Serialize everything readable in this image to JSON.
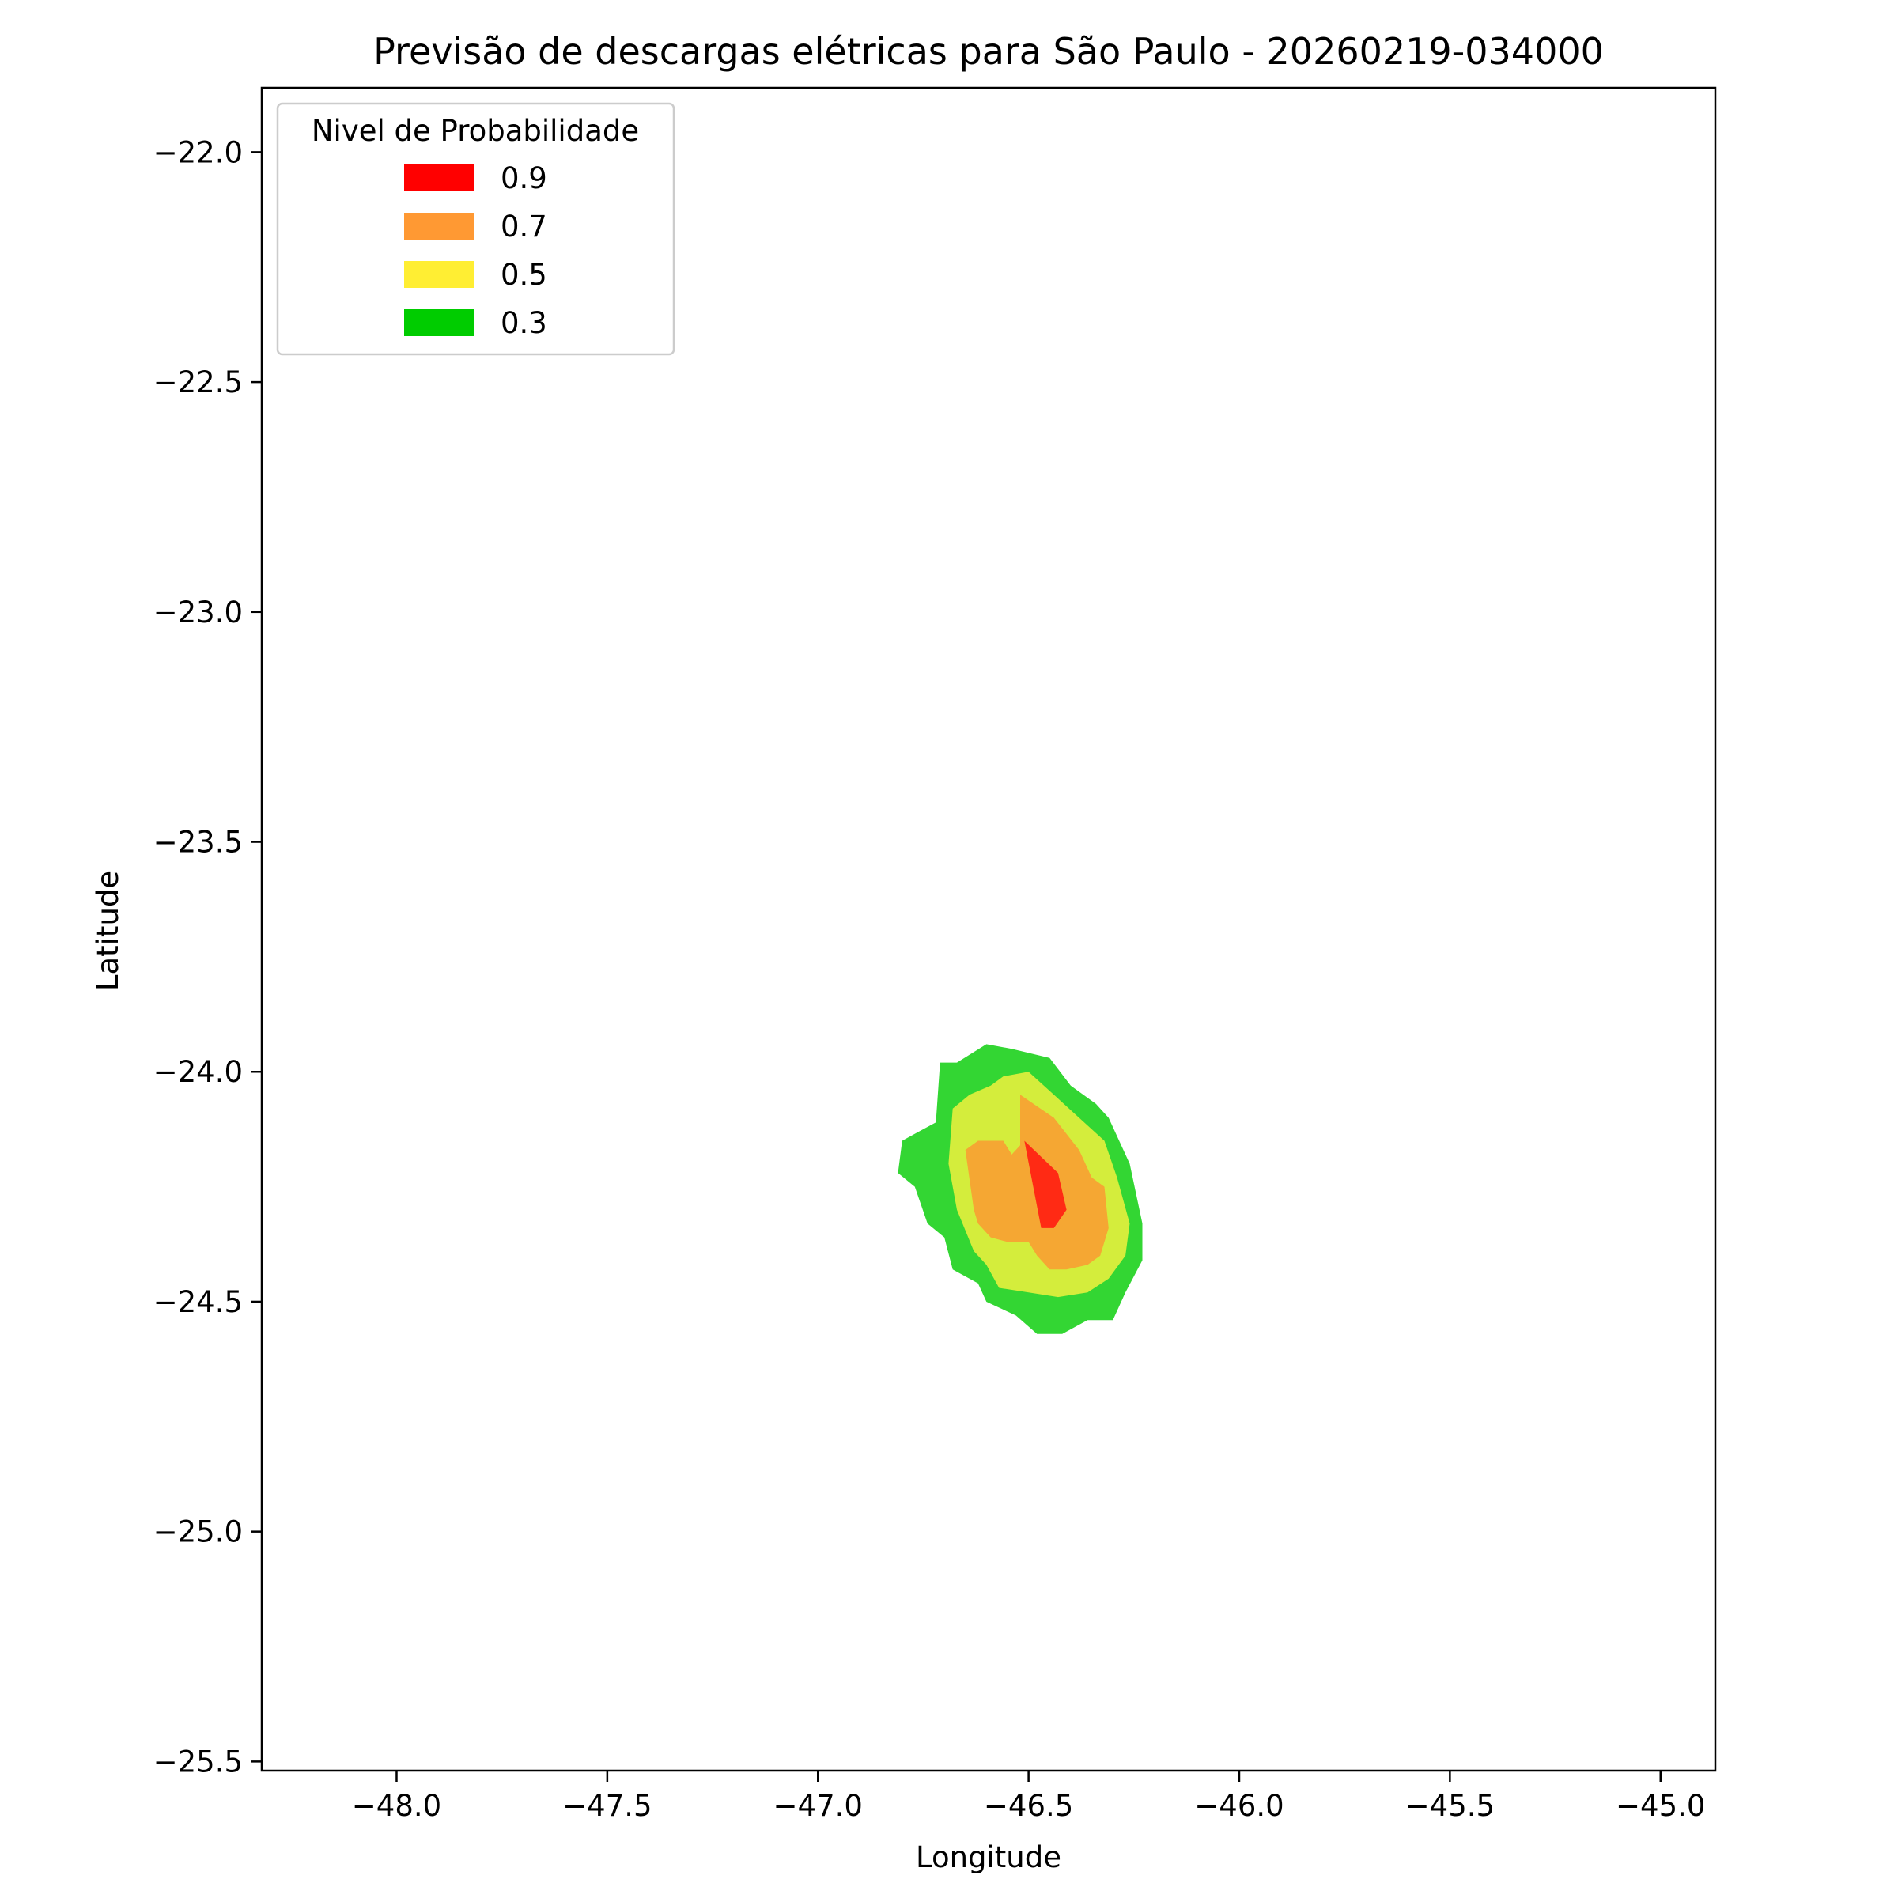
{
  "chart_data": {
    "type": "contour",
    "title": "Previsão de descargas elétricas para São Paulo - 20260219-034000",
    "xlabel": "Longitude",
    "ylabel": "Latitude",
    "xlim": [
      -48.32,
      -44.87
    ],
    "ylim": [
      -25.52,
      -21.86
    ],
    "xticks": [
      -48.0,
      -47.5,
      -47.0,
      -46.5,
      -46.0,
      -45.5,
      -45.0
    ],
    "xtick_labels": [
      "−48.0",
      "−47.5",
      "−47.0",
      "−46.5",
      "−46.0",
      "−45.5",
      "−45.0"
    ],
    "yticks": [
      -22.0,
      -22.5,
      -23.0,
      -23.5,
      -24.0,
      -24.5,
      -25.0,
      -25.5
    ],
    "ytick_labels": [
      "−22.0",
      "−22.5",
      "−23.0",
      "−23.5",
      "−24.0",
      "−24.5",
      "−25.0",
      "−25.5"
    ],
    "grid": false,
    "legend": {
      "title": "Nivel de Probabilidade",
      "placement": "upper-left",
      "entries": [
        {
          "label": "0.9",
          "color": "#ff0000"
        },
        {
          "label": "0.7",
          "color": "#ff9933"
        },
        {
          "label": "0.5",
          "color": "#ffee33"
        },
        {
          "label": "0.3",
          "color": "#00cc00"
        }
      ]
    },
    "levels": [
      {
        "level": "0.3",
        "color": "#33d633",
        "polygon": [
          [
            -46.6,
            -23.94
          ],
          [
            -46.54,
            -23.95
          ],
          [
            -46.45,
            -23.97
          ],
          [
            -46.4,
            -24.03
          ],
          [
            -46.34,
            -24.07
          ],
          [
            -46.31,
            -24.1
          ],
          [
            -46.26,
            -24.2
          ],
          [
            -46.23,
            -24.33
          ],
          [
            -46.23,
            -24.41
          ],
          [
            -46.27,
            -24.48
          ],
          [
            -46.3,
            -24.54
          ],
          [
            -46.36,
            -24.54
          ],
          [
            -46.42,
            -24.57
          ],
          [
            -46.48,
            -24.57
          ],
          [
            -46.53,
            -24.53
          ],
          [
            -46.6,
            -24.5
          ],
          [
            -46.62,
            -24.46
          ],
          [
            -46.68,
            -24.43
          ],
          [
            -46.7,
            -24.36
          ],
          [
            -46.74,
            -24.33
          ],
          [
            -46.77,
            -24.25
          ],
          [
            -46.81,
            -24.22
          ],
          [
            -46.8,
            -24.15
          ],
          [
            -46.76,
            -24.13
          ],
          [
            -46.72,
            -24.11
          ],
          [
            -46.71,
            -23.98
          ],
          [
            -46.67,
            -23.98
          ]
        ]
      },
      {
        "level": "0.5",
        "color": "#d4ed3c",
        "polygon": [
          [
            -46.56,
            -24.01
          ],
          [
            -46.5,
            -24.0
          ],
          [
            -46.44,
            -24.05
          ],
          [
            -46.38,
            -24.1
          ],
          [
            -46.32,
            -24.15
          ],
          [
            -46.29,
            -24.23
          ],
          [
            -46.26,
            -24.33
          ],
          [
            -46.27,
            -24.4
          ],
          [
            -46.31,
            -24.45
          ],
          [
            -46.36,
            -24.48
          ],
          [
            -46.43,
            -24.49
          ],
          [
            -46.5,
            -24.48
          ],
          [
            -46.57,
            -24.47
          ],
          [
            -46.6,
            -24.42
          ],
          [
            -46.63,
            -24.39
          ],
          [
            -46.67,
            -24.3
          ],
          [
            -46.69,
            -24.2
          ],
          [
            -46.68,
            -24.08
          ],
          [
            -46.64,
            -24.05
          ],
          [
            -46.59,
            -24.03
          ]
        ]
      },
      {
        "level": "0.7",
        "color": "#f5a733",
        "polygon": [
          [
            -46.52,
            -24.05
          ],
          [
            -46.44,
            -24.1
          ],
          [
            -46.38,
            -24.17
          ],
          [
            -46.35,
            -24.23
          ],
          [
            -46.32,
            -24.25
          ],
          [
            -46.31,
            -24.34
          ],
          [
            -46.33,
            -24.4
          ],
          [
            -46.36,
            -24.42
          ],
          [
            -46.41,
            -24.43
          ],
          [
            -46.45,
            -24.43
          ],
          [
            -46.48,
            -24.4
          ],
          [
            -46.5,
            -24.37
          ],
          [
            -46.55,
            -24.37
          ],
          [
            -46.59,
            -24.36
          ],
          [
            -46.62,
            -24.33
          ],
          [
            -46.63,
            -24.3
          ],
          [
            -46.65,
            -24.17
          ],
          [
            -46.62,
            -24.15
          ],
          [
            -46.56,
            -24.15
          ],
          [
            -46.54,
            -24.18
          ],
          [
            -46.52,
            -24.16
          ]
        ]
      },
      {
        "level": "0.9",
        "color": "#ff2a14",
        "polygon": [
          [
            -46.51,
            -24.15
          ],
          [
            -46.43,
            -24.22
          ],
          [
            -46.41,
            -24.3
          ],
          [
            -46.44,
            -24.34
          ],
          [
            -46.47,
            -24.34
          ]
        ]
      }
    ]
  }
}
